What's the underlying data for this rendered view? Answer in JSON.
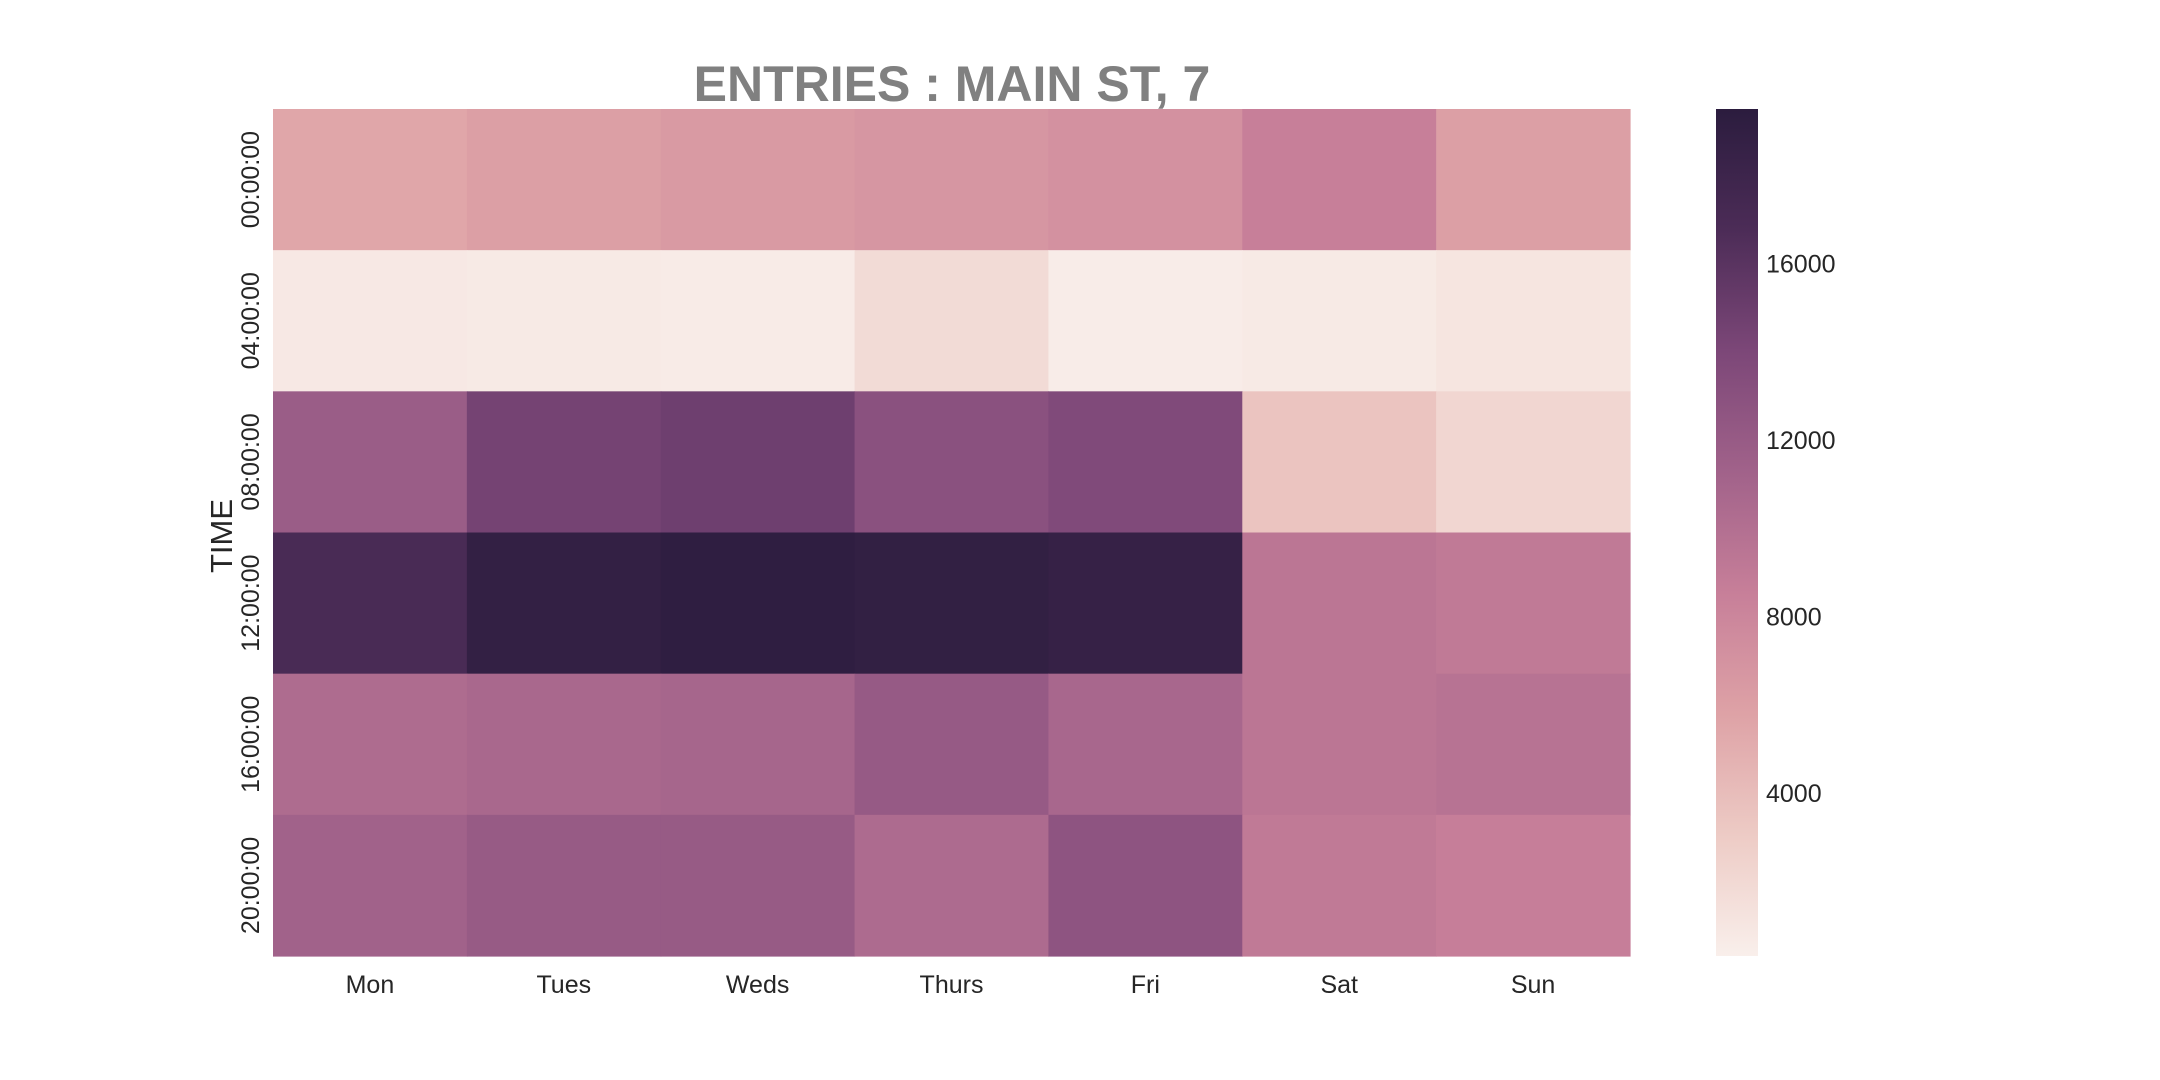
{
  "chart_data": {
    "type": "heatmap",
    "title": "ENTRIES : MAIN ST, 7",
    "xlabel": "",
    "ylabel": "TIME",
    "x_categories": [
      "Mon",
      "Tues",
      "Weds",
      "Thurs",
      "Fri",
      "Sat",
      "Sun"
    ],
    "y_categories": [
      "00:00:00",
      "04:00:00",
      "08:00:00",
      "12:00:00",
      "16:00:00",
      "20:00:00"
    ],
    "values": [
      [
        5500,
        6000,
        6400,
        6700,
        7100,
        8500,
        6000
      ],
      [
        800,
        700,
        600,
        1800,
        500,
        700,
        1100
      ],
      [
        11800,
        14400,
        14800,
        13000,
        13700,
        3500,
        2200
      ],
      [
        17000,
        18800,
        19200,
        18900,
        18600,
        9400,
        9000
      ],
      [
        10300,
        10700,
        10900,
        12100,
        10800,
        9400,
        9700
      ],
      [
        11300,
        12000,
        12000,
        10400,
        12700,
        9000,
        8600
      ]
    ],
    "colorbar": {
      "vmin": 300,
      "vmax": 19500,
      "ticks": [
        4000,
        8000,
        12000,
        16000
      ],
      "colors": [
        "#f9efeb",
        "#edcbc5",
        "#dea2a6",
        "#c77f99",
        "#a1628a",
        "#7c4778",
        "#4c2c57",
        "#2b1c3e"
      ]
    }
  }
}
